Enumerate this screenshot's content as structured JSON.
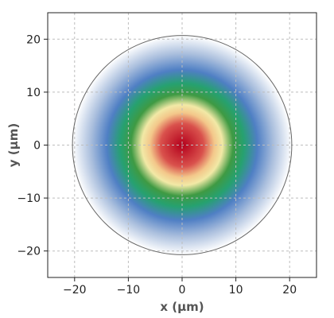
{
  "chart_data": {
    "type": "heatmap",
    "title": "",
    "xlabel": "x (µm)",
    "ylabel": "y (µm)",
    "xlim": [
      -25,
      25
    ],
    "ylim": [
      -25,
      25
    ],
    "grid": true,
    "x_ticks": [
      -20,
      -10,
      0,
      10,
      20
    ],
    "y_ticks": [
      -20,
      -10,
      0,
      10,
      20
    ],
    "x_tick_labels": [
      "−20",
      "−10",
      "0",
      "10",
      "20"
    ],
    "y_tick_labels": [
      "−20",
      "−10",
      "0",
      "10",
      "20"
    ],
    "field": {
      "shape": "circular gaussian intensity profile",
      "center": [
        0,
        0
      ],
      "aperture_radius": 20.4,
      "radial_color_stops": [
        {
          "r": 0,
          "color": "#b3001c"
        },
        {
          "r": 4,
          "color": "#d9514c"
        },
        {
          "r": 6,
          "color": "#f3c78a"
        },
        {
          "r": 7.5,
          "color": "#f2e9a6"
        },
        {
          "r": 9.5,
          "color": "#3f9a43"
        },
        {
          "r": 11.5,
          "color": "#26a170"
        },
        {
          "r": 14,
          "color": "#4f7fc4"
        },
        {
          "r": 17,
          "color": "#a9bedd"
        },
        {
          "r": 20.4,
          "color": "#ffffff"
        }
      ]
    },
    "colors": {
      "aperture_circle": "#666666",
      "grid": "#bdbdbd",
      "frame": "#222222"
    }
  }
}
